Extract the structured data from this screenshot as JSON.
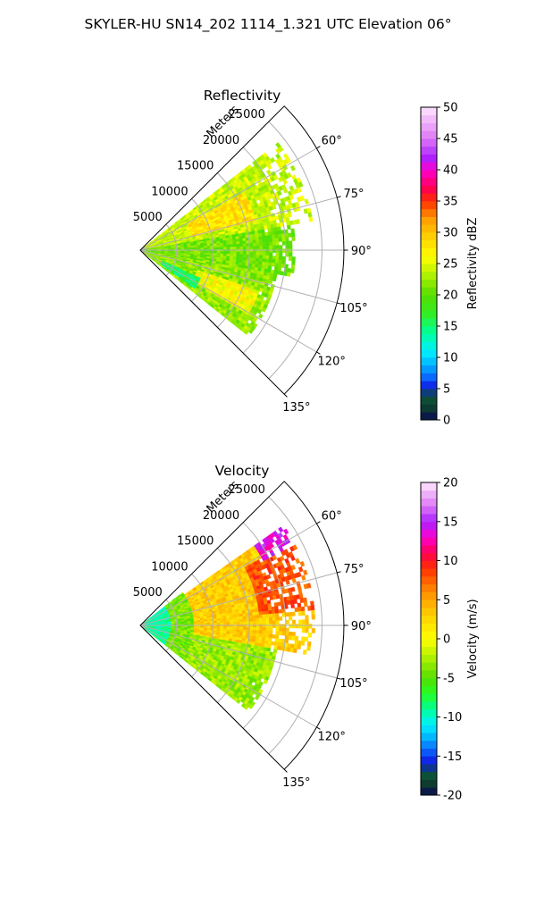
{
  "figure": {
    "suptitle": "SKYLER-HU  SN14_202  1114_1.321 UTC Elevation 06°"
  },
  "chart_data": [
    {
      "type": "heatmap",
      "title": "Reflectivity",
      "radial_axis_label": "Meters",
      "radial_ticks": [
        "5000",
        "10000",
        "15000",
        "20000",
        "25000"
      ],
      "radial_tick_values": [
        5000,
        10000,
        15000,
        20000,
        25000
      ],
      "rmax": 28000,
      "azimuth_range_deg": [
        45,
        135
      ],
      "azimuth_ticks": [
        "60°",
        "75°",
        "90°",
        "105°",
        "120°",
        "135°"
      ],
      "azimuth_tick_values": [
        60,
        75,
        90,
        105,
        120,
        135
      ],
      "grid": true,
      "data_sector": {
        "az_min": 52,
        "az_max": 128,
        "range_max": 24000
      },
      "field_regions": [
        {
          "az_from": 52,
          "az_to": 80,
          "r_from": 0,
          "r_to": 24000,
          "value": 24
        },
        {
          "az_from": 60,
          "az_to": 75,
          "r_from": 7000,
          "r_to": 16000,
          "value": 28
        },
        {
          "az_from": 80,
          "az_to": 100,
          "r_from": 0,
          "r_to": 21000,
          "value": 21
        },
        {
          "az_from": 100,
          "az_to": 128,
          "r_from": 0,
          "r_to": 19000,
          "value": 22
        },
        {
          "az_from": 108,
          "az_to": 120,
          "r_from": 8000,
          "r_to": 17000,
          "value": 26
        },
        {
          "az_from": 115,
          "az_to": 125,
          "r_from": 3000,
          "r_to": 9000,
          "value": 15
        }
      ],
      "colorbar": {
        "label": "Reflectivity dBZ",
        "min": 0,
        "max": 50,
        "ticks": [
          "0",
          "5",
          "10",
          "15",
          "20",
          "25",
          "30",
          "35",
          "40",
          "45",
          "50"
        ],
        "tick_values": [
          0,
          5,
          10,
          15,
          20,
          25,
          30,
          35,
          40,
          45,
          50
        ],
        "stops": [
          {
            "v": 0,
            "c": "#0a0a55"
          },
          {
            "v": 2,
            "c": "#0d3d2f"
          },
          {
            "v": 4,
            "c": "#0b5a3c"
          },
          {
            "v": 5,
            "c": "#1010e0"
          },
          {
            "v": 7,
            "c": "#0a70ff"
          },
          {
            "v": 9,
            "c": "#00b8ff"
          },
          {
            "v": 11,
            "c": "#00f0ff"
          },
          {
            "v": 14,
            "c": "#00ff99"
          },
          {
            "v": 17,
            "c": "#33ee22"
          },
          {
            "v": 20,
            "c": "#55dd00"
          },
          {
            "v": 23,
            "c": "#aaf000"
          },
          {
            "v": 26,
            "c": "#ffff00"
          },
          {
            "v": 29,
            "c": "#ffd500"
          },
          {
            "v": 32,
            "c": "#ffa000"
          },
          {
            "v": 35,
            "c": "#ff3000"
          },
          {
            "v": 37,
            "c": "#ff0050"
          },
          {
            "v": 40,
            "c": "#ff00d0"
          },
          {
            "v": 42,
            "c": "#aa22ff"
          },
          {
            "v": 45,
            "c": "#dd77f5"
          },
          {
            "v": 50,
            "c": "#ffe6ff"
          }
        ]
      }
    },
    {
      "type": "heatmap",
      "title": "Velocity",
      "radial_axis_label": "Meters",
      "radial_ticks": [
        "5000",
        "10000",
        "15000",
        "20000",
        "25000"
      ],
      "radial_tick_values": [
        5000,
        10000,
        15000,
        20000,
        25000
      ],
      "rmax": 28000,
      "azimuth_range_deg": [
        45,
        135
      ],
      "azimuth_ticks": [
        "60°",
        "75°",
        "90°",
        "105°",
        "120°",
        "135°"
      ],
      "azimuth_tick_values": [
        60,
        75,
        90,
        105,
        120,
        135
      ],
      "grid": true,
      "data_sector": {
        "az_min": 52,
        "az_max": 128,
        "range_max": 24000
      },
      "field_regions": [
        {
          "az_from": 52,
          "az_to": 128,
          "r_from": 0,
          "r_to": 4000,
          "value": -9
        },
        {
          "az_from": 52,
          "az_to": 128,
          "r_from": 4000,
          "r_to": 7000,
          "value": -4
        },
        {
          "az_from": 55,
          "az_to": 100,
          "r_from": 7000,
          "r_to": 24000,
          "value": 3
        },
        {
          "az_from": 60,
          "az_to": 85,
          "r_from": 16000,
          "r_to": 24000,
          "value": 8
        },
        {
          "az_from": 55,
          "az_to": 62,
          "r_from": 19000,
          "r_to": 24000,
          "value": 14
        },
        {
          "az_from": 100,
          "az_to": 128,
          "r_from": 7000,
          "r_to": 19000,
          "value": -3
        }
      ],
      "colorbar": {
        "label": "Velocity (m/s)",
        "min": -20,
        "max": 20,
        "ticks": [
          "-20",
          "-15",
          "-10",
          "-5",
          "0",
          "5",
          "10",
          "15",
          "20"
        ],
        "tick_values": [
          -20,
          -15,
          -10,
          -5,
          0,
          5,
          10,
          15,
          20
        ],
        "stops": [
          {
            "v": -20,
            "c": "#0a0a55"
          },
          {
            "v": -18.5,
            "c": "#0d3d2f"
          },
          {
            "v": -17,
            "c": "#0b5a3c"
          },
          {
            "v": -16,
            "c": "#1010e0"
          },
          {
            "v": -14,
            "c": "#0a70ff"
          },
          {
            "v": -12.5,
            "c": "#00b8ff"
          },
          {
            "v": -11,
            "c": "#00f0ff"
          },
          {
            "v": -9,
            "c": "#00ff99"
          },
          {
            "v": -7,
            "c": "#22ff22"
          },
          {
            "v": -5,
            "c": "#55dd00"
          },
          {
            "v": -2.5,
            "c": "#aaf000"
          },
          {
            "v": 0,
            "c": "#ffff00"
          },
          {
            "v": 3,
            "c": "#ffd000"
          },
          {
            "v": 6,
            "c": "#ff9000"
          },
          {
            "v": 9,
            "c": "#ff3000"
          },
          {
            "v": 11,
            "c": "#ff0050"
          },
          {
            "v": 13,
            "c": "#ff00d0"
          },
          {
            "v": 15,
            "c": "#aa22ff"
          },
          {
            "v": 17,
            "c": "#dd77f5"
          },
          {
            "v": 20,
            "c": "#ffe6ff"
          }
        ]
      }
    }
  ]
}
